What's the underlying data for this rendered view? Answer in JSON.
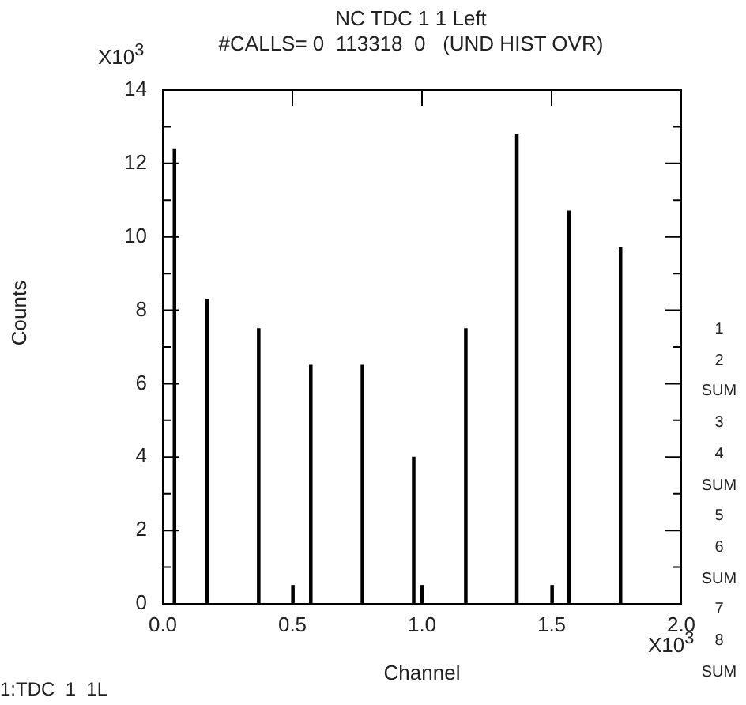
{
  "chart_data": {
    "type": "bar",
    "title": "NC TDC 1 1 Left",
    "subtitle": "#CALLS= 0  113318  0   (UND HIST OVR)",
    "xlabel": "Channel",
    "ylabel": "Counts",
    "x": [
      0.045,
      0.171,
      0.37,
      0.502,
      0.571,
      0.77,
      0.968,
      1.0,
      1.169,
      1.366,
      1.502,
      1.567,
      1.766
    ],
    "values": [
      12.4,
      8.3,
      7.5,
      0.5,
      6.5,
      6.5,
      4.0,
      0.5,
      7.5,
      12.8,
      0.5,
      10.7,
      9.7
    ],
    "color": "#000000",
    "xlim": [
      0,
      2
    ],
    "xticks": [
      {
        "value": 0,
        "label": "0.0"
      },
      {
        "value": 0.5,
        "label": "0.5"
      },
      {
        "value": 1,
        "label": "1.0"
      },
      {
        "value": 1.5,
        "label": "1.5"
      },
      {
        "value": 2,
        "label": "2.0"
      }
    ],
    "ylim": [
      0,
      14
    ],
    "yticks": [
      0,
      {
        "value": 1,
        "label": null
      },
      2,
      {
        "value": 3,
        "label": null
      },
      4,
      {
        "value": 5,
        "label": null
      },
      6,
      {
        "value": 7,
        "label": null
      },
      8,
      {
        "value": 9,
        "label": null
      },
      10,
      {
        "value": 11,
        "label": null
      },
      12,
      {
        "value": 13,
        "label": null
      },
      14
    ],
    "grid": false,
    "legend": false,
    "annotations": [
      "X10$^{3}$",
      "X10$^{3}$",
      "1",
      "2",
      "SUM",
      "3",
      "4",
      "SUM",
      "5",
      "6",
      "SUM",
      "7",
      "8",
      "SUM",
      "1:TDC  1  1L"
    ]
  }
}
